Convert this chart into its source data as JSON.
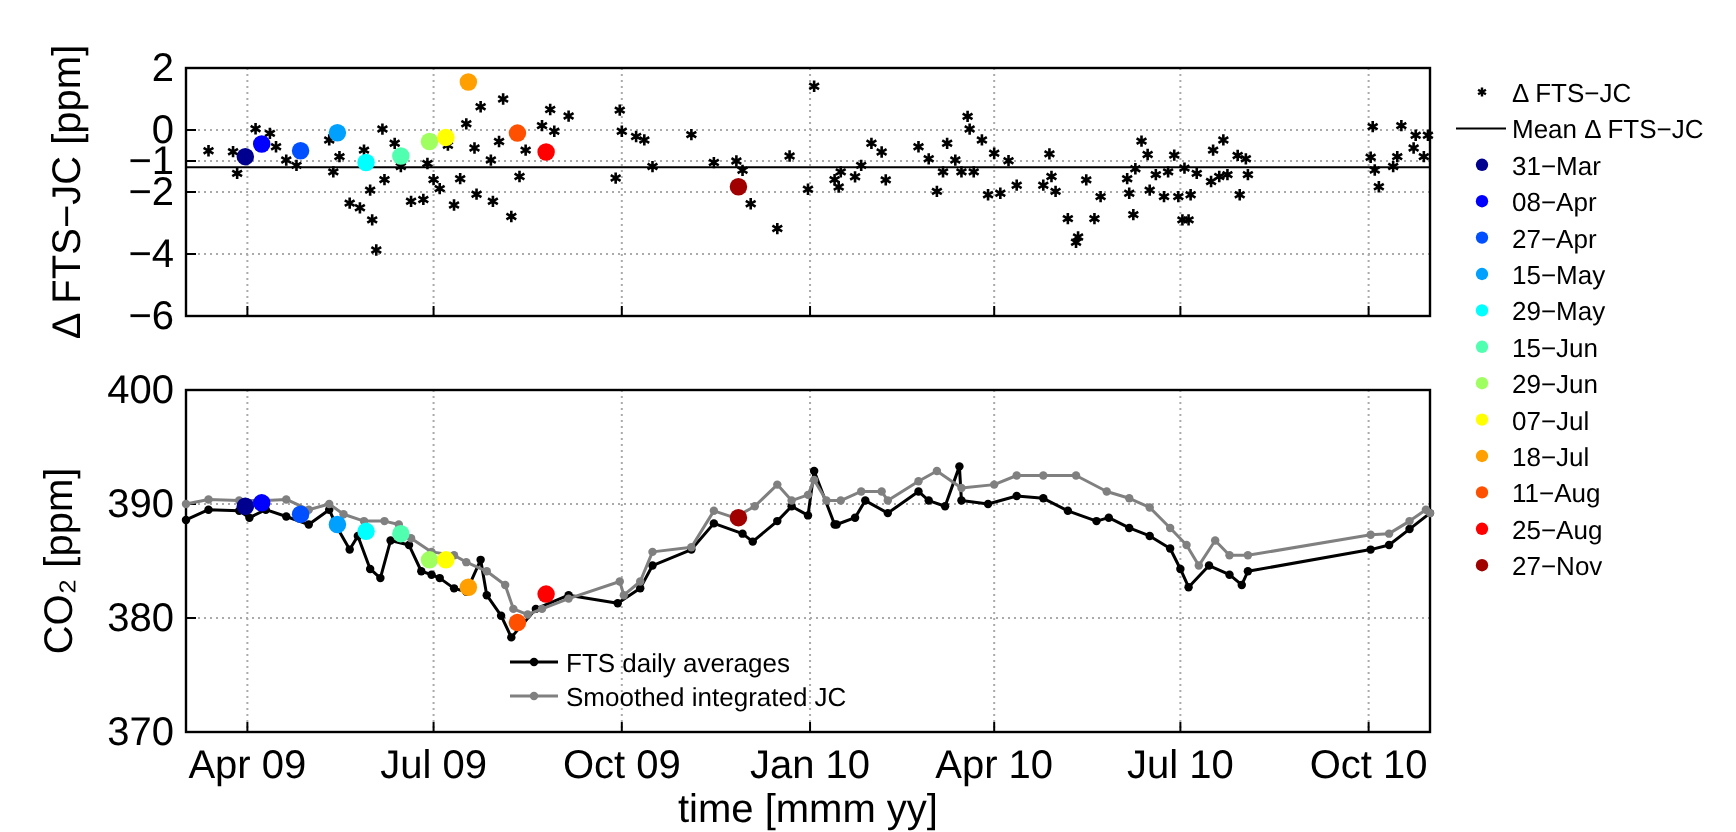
{
  "chart_data": [
    {
      "type": "scatter",
      "ylabel": "Δ FTS−JC [ppm]",
      "xlim": [
        "2009-03-02",
        "2010-10-31"
      ],
      "xticks": [
        {
          "value": "2009-04-01",
          "label": null
        },
        {
          "value": "2009-07-01",
          "label": null
        },
        {
          "value": "2009-10-01",
          "label": null
        },
        {
          "value": "2010-01-01",
          "label": null
        },
        {
          "value": "2010-04-01",
          "label": null
        },
        {
          "value": "2010-07-01",
          "label": null
        },
        {
          "value": "2010-10-01",
          "label": null
        }
      ],
      "ylim": [
        -6,
        2
      ],
      "yticks": [
        -6,
        -4,
        -2,
        -1,
        0,
        2
      ],
      "grid": true,
      "legend": "right",
      "tick_labels": "y",
      "ref_lines": [
        {
          "axis": "y",
          "value": -1.2,
          "label": "Mean Δ FTS−JC",
          "color": "#000000"
        }
      ],
      "series": [
        {
          "name": "Δ FTS−JC",
          "color": "#000000",
          "marker": "cross",
          "x": [
            "2009-03-13",
            "2009-03-25",
            "2009-03-27",
            "2009-04-05",
            "2009-04-12",
            "2009-04-15",
            "2009-04-20",
            "2009-04-25",
            "2009-05-11",
            "2009-05-13",
            "2009-05-16",
            "2009-05-21",
            "2009-05-26",
            "2009-05-28",
            "2009-05-31",
            "2009-06-01",
            "2009-06-03",
            "2009-06-06",
            "2009-06-07",
            "2009-06-12",
            "2009-06-15",
            "2009-06-20",
            "2009-06-26",
            "2009-06-28",
            "2009-07-01",
            "2009-07-04",
            "2009-07-08",
            "2009-07-11",
            "2009-07-14",
            "2009-07-17",
            "2009-07-21",
            "2009-07-22",
            "2009-07-24",
            "2009-07-29",
            "2009-07-30",
            "2009-08-02",
            "2009-08-04",
            "2009-08-08",
            "2009-08-12",
            "2009-08-15",
            "2009-08-23",
            "2009-08-27",
            "2009-08-29",
            "2009-09-05",
            "2009-09-28",
            "2009-09-30",
            "2009-10-01",
            "2009-10-08",
            "2009-10-12",
            "2009-10-16",
            "2009-11-04",
            "2009-11-15",
            "2009-11-26",
            "2009-11-29",
            "2009-12-03",
            "2009-12-16",
            "2009-12-22",
            "2009-12-31",
            "2010-01-03",
            "2010-01-13",
            "2010-01-15",
            "2010-01-16",
            "2010-01-23",
            "2010-01-26",
            "2010-01-31",
            "2010-02-05",
            "2010-02-07",
            "2010-02-23",
            "2010-02-28",
            "2010-03-04",
            "2010-03-07",
            "2010-03-09",
            "2010-03-13",
            "2010-03-16",
            "2010-03-19",
            "2010-03-20",
            "2010-03-22",
            "2010-03-26",
            "2010-03-29",
            "2010-04-01",
            "2010-04-04",
            "2010-04-08",
            "2010-04-12",
            "2010-04-25",
            "2010-04-28",
            "2010-04-29",
            "2010-05-01",
            "2010-05-07",
            "2010-05-11",
            "2010-05-12",
            "2010-05-16",
            "2010-05-20",
            "2010-05-23",
            "2010-06-05",
            "2010-06-06",
            "2010-06-08",
            "2010-06-09",
            "2010-06-12",
            "2010-06-15",
            "2010-06-16",
            "2010-06-19",
            "2010-06-23",
            "2010-06-25",
            "2010-06-28",
            "2010-06-30",
            "2010-07-02",
            "2010-07-03",
            "2010-07-05",
            "2010-07-06",
            "2010-07-09",
            "2010-07-16",
            "2010-07-17",
            "2010-07-20",
            "2010-07-22",
            "2010-07-24",
            "2010-07-29",
            "2010-07-30",
            "2010-08-02",
            "2010-08-03",
            "2010-10-02",
            "2010-10-03",
            "2010-10-04",
            "2010-10-06",
            "2010-10-13",
            "2010-10-15",
            "2010-10-17",
            "2010-10-23",
            "2010-10-24",
            "2010-10-28",
            "2010-10-30"
          ],
          "values": [
            -0.67,
            -0.7,
            -1.4,
            0.04,
            -0.11,
            -0.54,
            -0.97,
            -1.14,
            -0.32,
            -1.35,
            -0.86,
            -2.36,
            -2.51,
            -0.65,
            -1.94,
            -2.9,
            -3.87,
            0.03,
            -1.6,
            -0.43,
            -1.18,
            -2.3,
            -2.24,
            -1.08,
            -1.6,
            -1.89,
            -0.49,
            -2.42,
            -1.57,
            0.2,
            -0.58,
            -2.07,
            0.75,
            -0.97,
            -2.3,
            -0.37,
            1.0,
            -2.79,
            -1.5,
            -0.65,
            0.14,
            0.66,
            -0.04,
            0.45,
            -1.55,
            0.64,
            -0.04,
            -0.21,
            -0.32,
            -1.18,
            -0.15,
            -1.05,
            -1.0,
            -1.3,
            -2.38,
            -3.18,
            -0.84,
            -1.91,
            1.41,
            -1.6,
            -1.84,
            -1.35,
            -1.51,
            -1.14,
            -0.43,
            -0.71,
            -1.61,
            -0.54,
            -0.93,
            -1.98,
            -1.35,
            -0.43,
            -0.97,
            -1.35,
            0.44,
            0.03,
            -1.35,
            -0.32,
            -2.09,
            -0.75,
            -2.04,
            -0.99,
            -1.78,
            -1.78,
            -0.77,
            -1.5,
            -1.98,
            -2.86,
            -3.62,
            -3.45,
            -1.61,
            -2.86,
            -2.15,
            -1.57,
            -2.04,
            -2.73,
            -1.25,
            -0.36,
            -0.79,
            -1.94,
            -1.44,
            -2.15,
            -1.35,
            -0.81,
            -2.15,
            -2.9,
            -1.23,
            -2.9,
            -2.09,
            -1.4,
            -1.66,
            -0.65,
            -1.5,
            -0.32,
            -1.44,
            -0.82,
            -2.09,
            -0.93,
            -1.44,
            -0.88,
            0.11,
            -1.29,
            -1.83,
            -1.18,
            -0.86,
            0.14,
            -0.58,
            -0.17,
            -0.86,
            -0.17
          ]
        },
        {
          "name": "31−Mar",
          "color": "#00008f",
          "marker": "circle",
          "x": [
            "2009-03-31"
          ],
          "values": [
            -0.86
          ]
        },
        {
          "name": "08−Apr",
          "color": "#0000ff",
          "marker": "circle",
          "x": [
            "2009-04-08"
          ],
          "values": [
            -0.45
          ]
        },
        {
          "name": "27−Apr",
          "color": "#0050ff",
          "marker": "circle",
          "x": [
            "2009-04-27"
          ],
          "values": [
            -0.67
          ]
        },
        {
          "name": "15−May",
          "color": "#00a0ff",
          "marker": "circle",
          "x": [
            "2009-05-15"
          ],
          "values": [
            -0.09
          ]
        },
        {
          "name": "29−May",
          "color": "#00ffff",
          "marker": "circle",
          "x": [
            "2009-05-29"
          ],
          "values": [
            -1.05
          ]
        },
        {
          "name": "15−Jun",
          "color": "#50ffaf",
          "marker": "circle",
          "x": [
            "2009-06-15"
          ],
          "values": [
            -0.84
          ]
        },
        {
          "name": "29−Jun",
          "color": "#a0ff60",
          "marker": "circle",
          "x": [
            "2009-06-29"
          ],
          "values": [
            -0.37
          ]
        },
        {
          "name": "07−Jul",
          "color": "#ffff00",
          "marker": "circle",
          "x": [
            "2009-07-07"
          ],
          "values": [
            -0.24
          ]
        },
        {
          "name": "18−Jul",
          "color": "#ffa000",
          "marker": "circle",
          "x": [
            "2009-07-18"
          ],
          "values": [
            1.55
          ]
        },
        {
          "name": "11−Aug",
          "color": "#ff5000",
          "marker": "circle",
          "x": [
            "2009-08-11"
          ],
          "values": [
            -0.1
          ]
        },
        {
          "name": "25−Aug",
          "color": "#ff0000",
          "marker": "circle",
          "x": [
            "2009-08-25"
          ],
          "values": [
            -0.71
          ]
        },
        {
          "name": "27−Nov",
          "color": "#a00000",
          "marker": "circle",
          "x": [
            "2009-11-27"
          ],
          "values": [
            -1.83
          ]
        }
      ]
    },
    {
      "type": "line",
      "xlabel": "time [mmm yy]",
      "ylabel": "CO₂ [ppm]",
      "xlim": [
        "2009-03-02",
        "2010-10-31"
      ],
      "xticks": [
        {
          "value": "2009-04-01",
          "label": "Apr 09"
        },
        {
          "value": "2009-07-01",
          "label": "Jul 09"
        },
        {
          "value": "2009-10-01",
          "label": "Oct 09"
        },
        {
          "value": "2010-01-01",
          "label": "Jan 10"
        },
        {
          "value": "2010-04-01",
          "label": "Apr 10"
        },
        {
          "value": "2010-07-01",
          "label": "Jul 10"
        },
        {
          "value": "2010-10-01",
          "label": "Oct 10"
        }
      ],
      "ylim": [
        370,
        400
      ],
      "yticks": [
        370,
        380,
        390,
        400
      ],
      "grid": true,
      "legend": "bottom",
      "marker": "circle",
      "series": [
        {
          "name": "FTS daily averages",
          "color": "#000000",
          "x": [
            "2009-03-02",
            "2009-03-13",
            "2009-03-28",
            "2009-04-02",
            "2009-04-10",
            "2009-04-20",
            "2009-05-01",
            "2009-05-11",
            "2009-05-15",
            "2009-05-21",
            "2009-05-25",
            "2009-05-31",
            "2009-06-05",
            "2009-06-10",
            "2009-06-19",
            "2009-06-25",
            "2009-06-30",
            "2009-07-04",
            "2009-07-11",
            "2009-07-17",
            "2009-07-24",
            "2009-07-27",
            "2009-08-03",
            "2009-08-08",
            "2009-08-20",
            "2009-09-05",
            "2009-09-29",
            "2009-10-10",
            "2009-10-16",
            "2009-11-04",
            "2009-11-15",
            "2009-11-29",
            "2009-12-04",
            "2009-12-16",
            "2009-12-23",
            "2009-12-31",
            "2010-01-03",
            "2010-01-13",
            "2010-01-14",
            "2010-01-23",
            "2010-01-28",
            "2010-02-08",
            "2010-02-23",
            "2010-02-28",
            "2010-03-08",
            "2010-03-15",
            "2010-03-16",
            "2010-03-29",
            "2010-04-12",
            "2010-04-25",
            "2010-05-07",
            "2010-05-21",
            "2010-05-27",
            "2010-06-06",
            "2010-06-16",
            "2010-06-26",
            "2010-07-01",
            "2010-07-05",
            "2010-07-15",
            "2010-07-25",
            "2010-07-31",
            "2010-08-03",
            "2010-10-02",
            "2010-10-11",
            "2010-10-21",
            "2010-10-31"
          ],
          "values": [
            388.6,
            389.5,
            389.4,
            388.8,
            389.5,
            388.9,
            388.2,
            389.5,
            387.9,
            386.0,
            387.2,
            384.3,
            383.5,
            386.8,
            386.4,
            384.1,
            383.8,
            383.5,
            382.6,
            382.3,
            385.1,
            382.0,
            380.2,
            378.3,
            380.8,
            382.0,
            381.3,
            382.6,
            384.6,
            386.0,
            388.3,
            387.4,
            386.7,
            388.5,
            389.8,
            389.0,
            392.9,
            388.2,
            388.2,
            388.8,
            390.3,
            389.2,
            391.1,
            390.3,
            389.8,
            393.3,
            390.3,
            390.0,
            390.7,
            390.5,
            389.4,
            388.5,
            388.8,
            387.9,
            387.2,
            386.1,
            384.3,
            382.7,
            384.6,
            383.8,
            382.9,
            384.1,
            386.0,
            386.4,
            387.8,
            389.2
          ]
        },
        {
          "name": "Smoothed integrated JC",
          "color": "#808080",
          "x": [
            "2009-03-02",
            "2009-03-13",
            "2009-03-28",
            "2009-04-10",
            "2009-04-20",
            "2009-05-01",
            "2009-05-11",
            "2009-05-18",
            "2009-05-28",
            "2009-06-07",
            "2009-06-14",
            "2009-06-20",
            "2009-06-30",
            "2009-07-11",
            "2009-07-17",
            "2009-07-27",
            "2009-08-05",
            "2009-08-09",
            "2009-08-16",
            "2009-08-23",
            "2009-09-05",
            "2009-09-30",
            "2009-10-02",
            "2009-10-10",
            "2009-10-16",
            "2009-11-04",
            "2009-11-15",
            "2009-11-25",
            "2009-12-05",
            "2009-12-16",
            "2009-12-23",
            "2009-12-31",
            "2010-01-03",
            "2010-01-09",
            "2010-01-16",
            "2010-01-26",
            "2010-02-05",
            "2010-02-08",
            "2010-02-23",
            "2010-03-04",
            "2010-03-16",
            "2010-04-01",
            "2010-04-12",
            "2010-04-25",
            "2010-05-11",
            "2010-05-26",
            "2010-06-06",
            "2010-06-16",
            "2010-06-26",
            "2010-07-04",
            "2010-07-10",
            "2010-07-18",
            "2010-07-25",
            "2010-08-03",
            "2010-10-02",
            "2010-10-11",
            "2010-10-21",
            "2010-10-29",
            "2010-10-31"
          ],
          "values": [
            390.0,
            390.4,
            390.3,
            390.3,
            390.4,
            389.5,
            390.0,
            389.1,
            388.5,
            388.5,
            388.2,
            387.0,
            385.8,
            385.5,
            384.9,
            384.1,
            382.9,
            380.8,
            380.3,
            380.8,
            381.7,
            383.2,
            382.0,
            383.2,
            385.8,
            386.2,
            389.4,
            388.8,
            389.8,
            391.7,
            390.3,
            390.8,
            392.1,
            390.3,
            390.3,
            391.1,
            391.1,
            390.3,
            392.0,
            392.9,
            391.4,
            391.7,
            392.5,
            392.5,
            392.5,
            391.1,
            390.5,
            389.7,
            387.9,
            386.4,
            384.6,
            386.8,
            385.5,
            385.5,
            387.3,
            387.4,
            388.5,
            389.5,
            389.2
          ]
        },
        {
          "type": "scatter",
          "color": "#00008f",
          "x": [
            "2009-03-31"
          ],
          "values": [
            389.8
          ]
        },
        {
          "type": "scatter",
          "color": "#0000ff",
          "x": [
            "2009-04-08"
          ],
          "values": [
            390.1
          ]
        },
        {
          "type": "scatter",
          "color": "#0050ff",
          "x": [
            "2009-04-27"
          ],
          "values": [
            389.1
          ]
        },
        {
          "type": "scatter",
          "color": "#00a0ff",
          "x": [
            "2009-05-15"
          ],
          "values": [
            388.2
          ]
        },
        {
          "type": "scatter",
          "color": "#00ffff",
          "x": [
            "2009-05-29"
          ],
          "values": [
            387.6
          ]
        },
        {
          "type": "scatter",
          "color": "#50ffaf",
          "x": [
            "2009-06-15"
          ],
          "values": [
            387.4
          ]
        },
        {
          "type": "scatter",
          "color": "#a0ff60",
          "x": [
            "2009-06-29"
          ],
          "values": [
            385.1
          ]
        },
        {
          "type": "scatter",
          "color": "#ffff00",
          "x": [
            "2009-07-07"
          ],
          "values": [
            385.1
          ]
        },
        {
          "type": "scatter",
          "color": "#ffa000",
          "x": [
            "2009-07-18"
          ],
          "values": [
            382.7
          ]
        },
        {
          "type": "scatter",
          "color": "#ff5000",
          "x": [
            "2009-08-11"
          ],
          "values": [
            379.6
          ]
        },
        {
          "type": "scatter",
          "color": "#ff0000",
          "x": [
            "2009-08-25"
          ],
          "values": [
            382.1
          ]
        },
        {
          "type": "scatter",
          "color": "#a00000",
          "x": [
            "2009-11-27"
          ],
          "values": [
            388.8
          ]
        }
      ]
    }
  ]
}
